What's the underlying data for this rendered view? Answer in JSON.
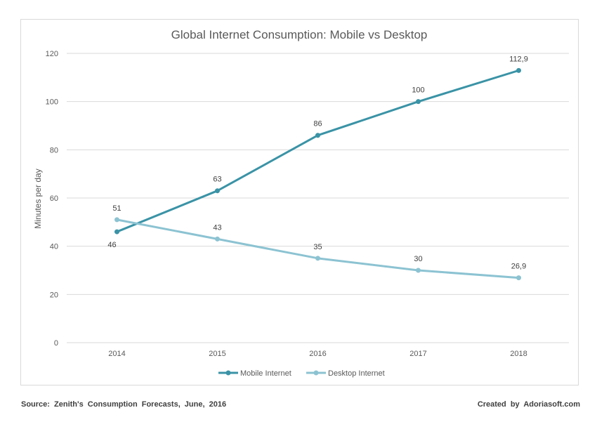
{
  "chart_data": {
    "type": "line",
    "title": "Global Internet Consumption: Mobile vs Desktop",
    "xlabel": "",
    "ylabel": "Minutes per day",
    "categories": [
      "2014",
      "2015",
      "2016",
      "2017",
      "2018"
    ],
    "ylim": [
      0,
      120
    ],
    "yticks": [
      0,
      20,
      40,
      60,
      80,
      100,
      120
    ],
    "grid": true,
    "legend_position": "bottom",
    "series": [
      {
        "name": "Mobile Internet",
        "color": "#3a93a6",
        "values": [
          46,
          63,
          86,
          100,
          112.9
        ],
        "labels": [
          "46",
          "63",
          "86",
          "100",
          "112,9"
        ]
      },
      {
        "name": "Desktop Internet",
        "color": "#8cc3d2",
        "values": [
          51,
          43,
          35,
          30,
          26.9
        ],
        "labels": [
          "51",
          "43",
          "35",
          "30",
          "26,9"
        ]
      }
    ]
  },
  "footer": {
    "source": "Source: Zenith's Consumption Forecasts, June, 2016",
    "credit": "Created by Adoriasoft.com"
  }
}
